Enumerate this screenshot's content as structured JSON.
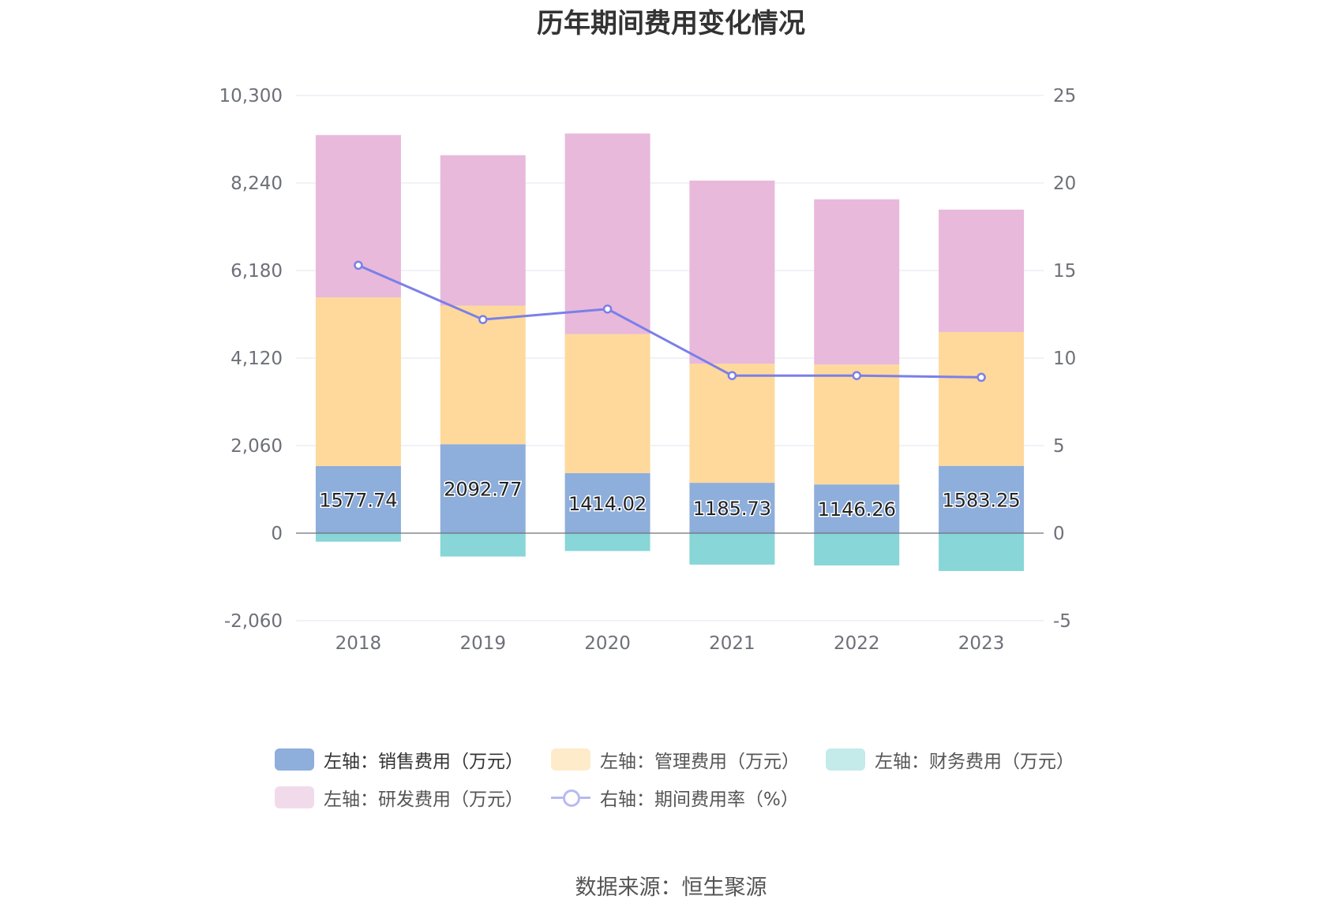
{
  "title": "历年期间费用变化情况",
  "source": "数据来源：恒生聚源",
  "chart_data": {
    "type": "bar",
    "categories": [
      "2018",
      "2019",
      "2020",
      "2021",
      "2022",
      "2023"
    ],
    "left_axis": {
      "min": -2060,
      "max": 10300,
      "ticks": [
        "10,300",
        "8,240",
        "6,180",
        "4,120",
        "2,060",
        "0",
        "-2,060"
      ],
      "tick_values": [
        10300,
        8240,
        6180,
        4120,
        2060,
        0,
        -2060
      ]
    },
    "right_axis": {
      "min": -5,
      "max": 25,
      "ticks": [
        "25",
        "20",
        "15",
        "10",
        "5",
        "0",
        "-5"
      ],
      "tick_values": [
        25,
        20,
        15,
        10,
        5,
        0,
        -5
      ]
    },
    "series": [
      {
        "name": "左轴：销售费用（万元）",
        "type": "bar",
        "axis": "left",
        "color": "#8eaedb",
        "values": [
          1577.74,
          2092.77,
          1414.02,
          1185.73,
          1146.26,
          1583.25
        ],
        "labels": [
          "1577.74",
          "2092.77",
          "1414.02",
          "1185.73",
          "1146.26",
          "1583.25"
        ]
      },
      {
        "name": "左轴：管理费用（万元）",
        "type": "bar",
        "axis": "left",
        "color": "#fed99b",
        "values": [
          3970,
          3260,
          3270,
          2800,
          2820,
          3150
        ]
      },
      {
        "name": "左轴：财务费用（万元）",
        "type": "bar",
        "axis": "left",
        "color": "#88d6d7",
        "values": [
          -200,
          -550,
          -420,
          -740,
          -760,
          -890
        ]
      },
      {
        "name": "左轴：研发费用（万元）",
        "type": "bar",
        "axis": "left",
        "color": "#e8b9da",
        "values": [
          3820,
          3540,
          4720,
          4310,
          3890,
          2880
        ]
      },
      {
        "name": "右轴：期间费用率（%）",
        "type": "line",
        "axis": "right",
        "color": "#7b7fe8",
        "values": [
          15.3,
          12.2,
          12.8,
          9.0,
          9.0,
          8.9
        ]
      }
    ],
    "legend_position": "bottom",
    "grid": true
  }
}
